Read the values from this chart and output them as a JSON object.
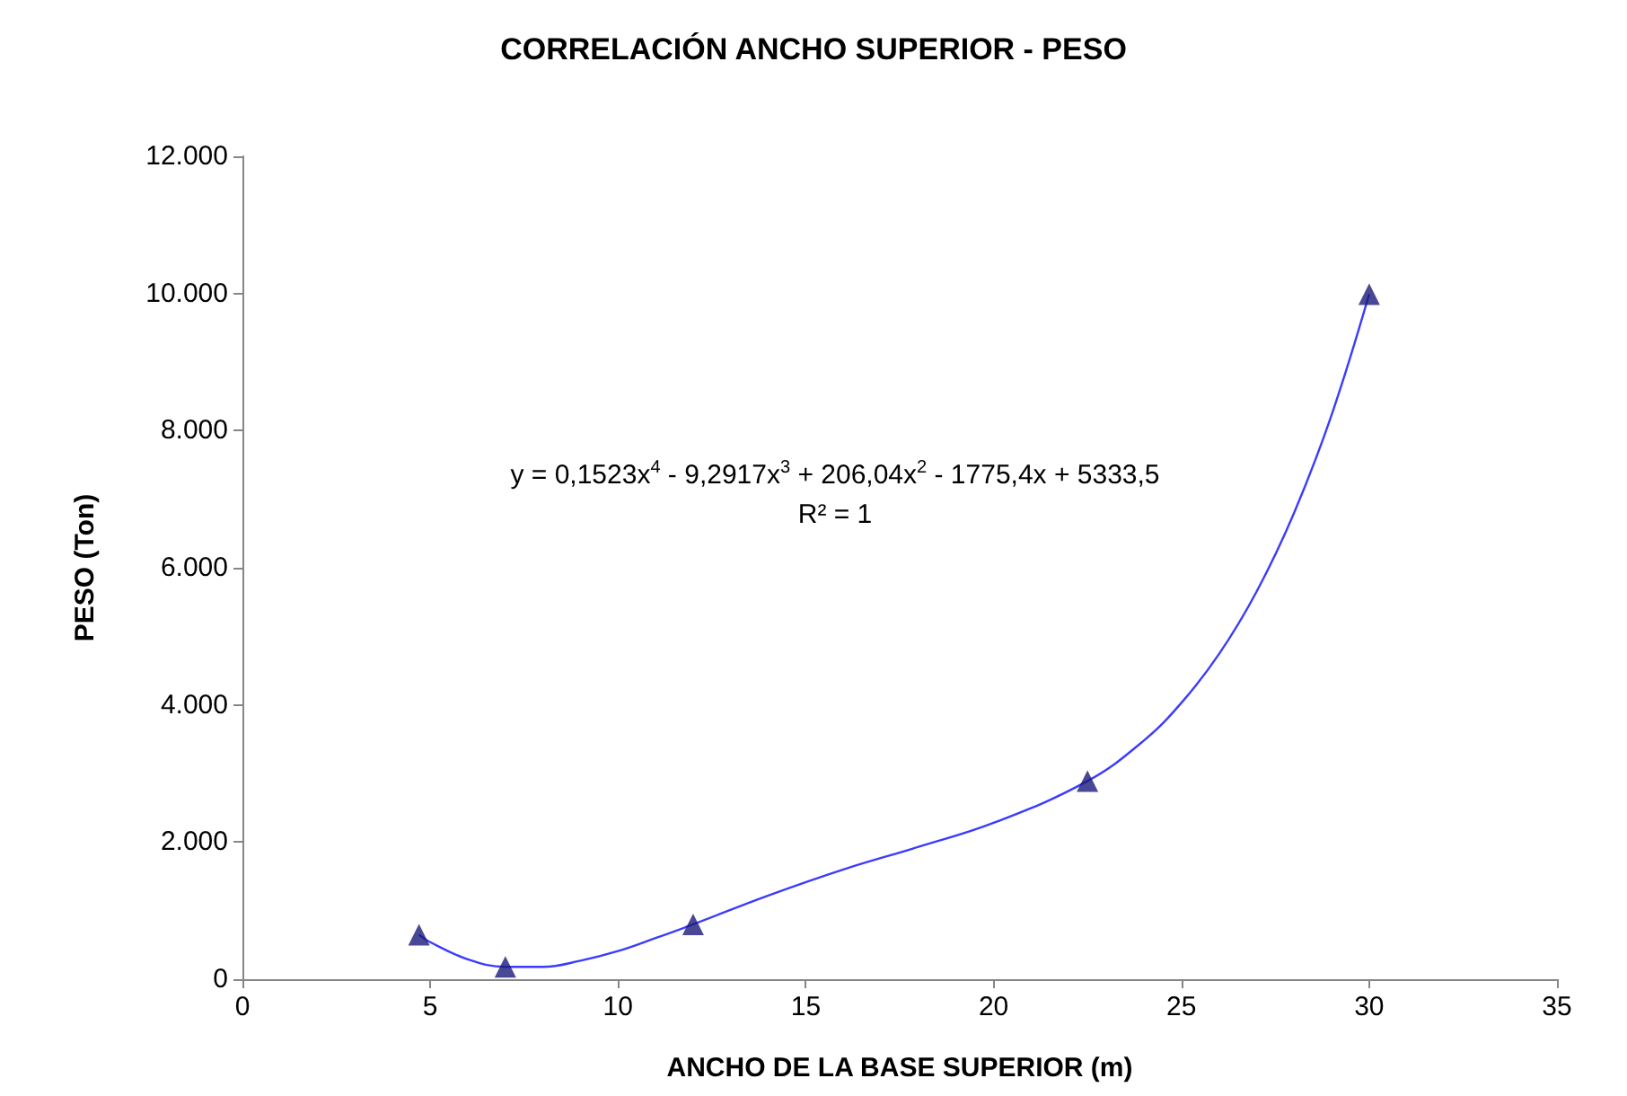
{
  "chart_data": {
    "type": "scatter",
    "title": "CORRELACIÓN ANCHO SUPERIOR - PESO",
    "xlabel": "ANCHO DE LA BASE SUPERIOR (m)",
    "ylabel": "PESO (Ton)",
    "annotations": [
      "y = 0,1523x$^{4}$ - 9,2917x$^{3}$ + 206,04x$^{2}$ - 1775,4x + 5333,5",
      "R² = 1"
    ],
    "xlim": [
      0,
      35
    ],
    "xticks": [
      0,
      5,
      10,
      15,
      20,
      25,
      30,
      35
    ],
    "ylim": [
      0,
      12000
    ],
    "yticks": [
      0,
      {
        "value": 2000,
        "label": "2.000"
      },
      {
        "value": 4000,
        "label": "4.000"
      },
      {
        "value": 6000,
        "label": "6.000"
      },
      {
        "value": 8000,
        "label": "8.000"
      },
      {
        "value": 10000,
        "label": "10.000"
      },
      {
        "value": 12000,
        "label": "12.000"
      }
    ],
    "grid": false,
    "series": [
      {
        "color": "#1a1a7a",
        "marker": "triangle",
        "x": [
          4.7,
          7,
          12,
          22.5,
          30
        ],
        "values": [
          650,
          180,
          800,
          2890,
          9990
        ]
      },
      {
        "type": "line",
        "color": "#3b3bff",
        "marker": "none",
        "line_style": "solid",
        "x": [
          4.7,
          5,
          6,
          7,
          8,
          9,
          10,
          11,
          12,
          14,
          16,
          18,
          20,
          22.5,
          24,
          25,
          26,
          27,
          28,
          29,
          30
        ],
        "values": [
          650,
          540,
          290,
          180,
          180,
          270,
          410,
          600,
          800,
          1220,
          1600,
          1930,
          2280,
          2890,
          3480,
          4030,
          4740,
          5650,
          6800,
          8230,
          9990
        ]
      }
    ]
  }
}
